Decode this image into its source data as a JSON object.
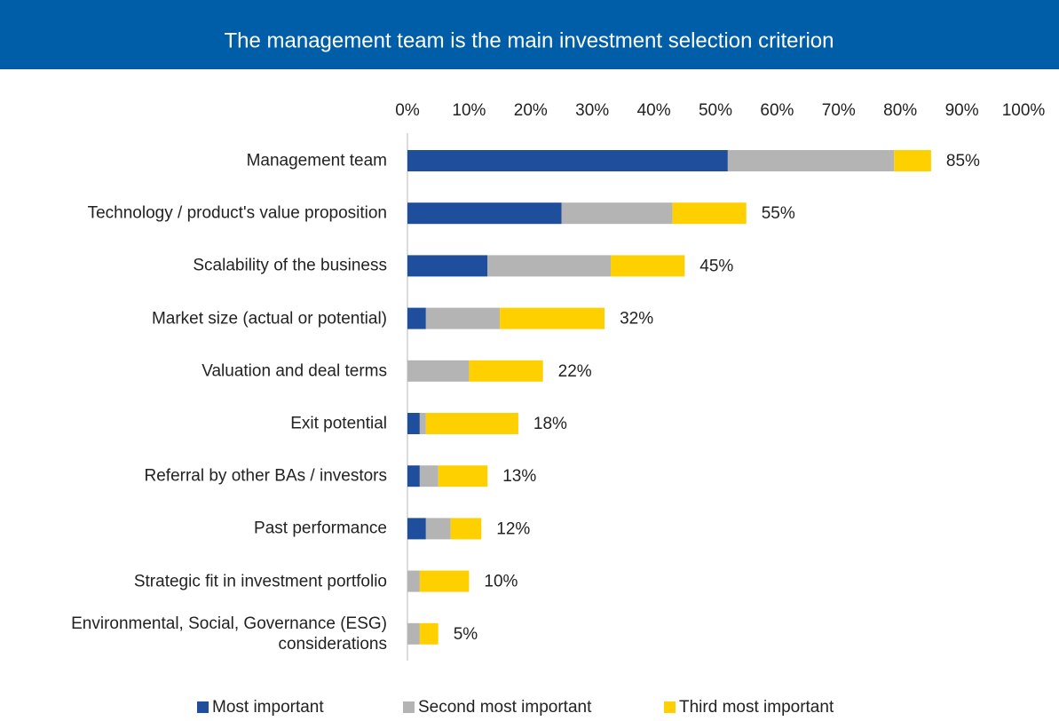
{
  "chart_data": {
    "type": "stacked_barh",
    "title": "The management team is the main investment selection criterion",
    "categories": [
      "Management team",
      "Technology / product's value proposition",
      "Scalability of the business",
      "Market size (actual or potential)",
      "Valuation and deal terms",
      "Exit potential",
      "Referral by other BAs / investors",
      "Past performance",
      "Strategic fit in investment portfolio",
      "Environmental, Social, Governance (ESG) considerations"
    ],
    "series": [
      {
        "name": "Most important",
        "color": "#1f4e9c",
        "values": [
          52,
          25,
          13,
          3,
          0,
          2,
          2,
          3,
          0,
          0
        ]
      },
      {
        "name": "Second most important",
        "color": "#b4b4b4",
        "values": [
          27,
          18,
          20,
          12,
          10,
          1,
          3,
          4,
          2,
          2
        ]
      },
      {
        "name": "Third most important",
        "color": "#ffd000",
        "values": [
          6,
          12,
          12,
          17,
          12,
          15,
          8,
          5,
          8,
          3
        ]
      }
    ],
    "totals": [
      85,
      55,
      45,
      32,
      22,
      18,
      13,
      12,
      10,
      5
    ],
    "total_labels": [
      "85%",
      "55%",
      "45%",
      "32%",
      "22%",
      "18%",
      "13%",
      "12%",
      "10%",
      "5%"
    ],
    "xlim": [
      0,
      100
    ],
    "xticks": [
      {
        "value": 0,
        "label": "0%"
      },
      {
        "value": 10,
        "label": "10%"
      },
      {
        "value": 20,
        "label": "20%"
      },
      {
        "value": 30,
        "label": "30%"
      },
      {
        "value": 40,
        "label": "40%"
      },
      {
        "value": 50,
        "label": "50%"
      },
      {
        "value": 60,
        "label": "60%"
      },
      {
        "value": 70,
        "label": "70%"
      },
      {
        "value": 80,
        "label": "80%"
      },
      {
        "value": 90,
        "label": "90%"
      },
      {
        "value": 100,
        "label": "100%"
      }
    ],
    "legend": "bottom",
    "header_color": "#005ea8"
  }
}
